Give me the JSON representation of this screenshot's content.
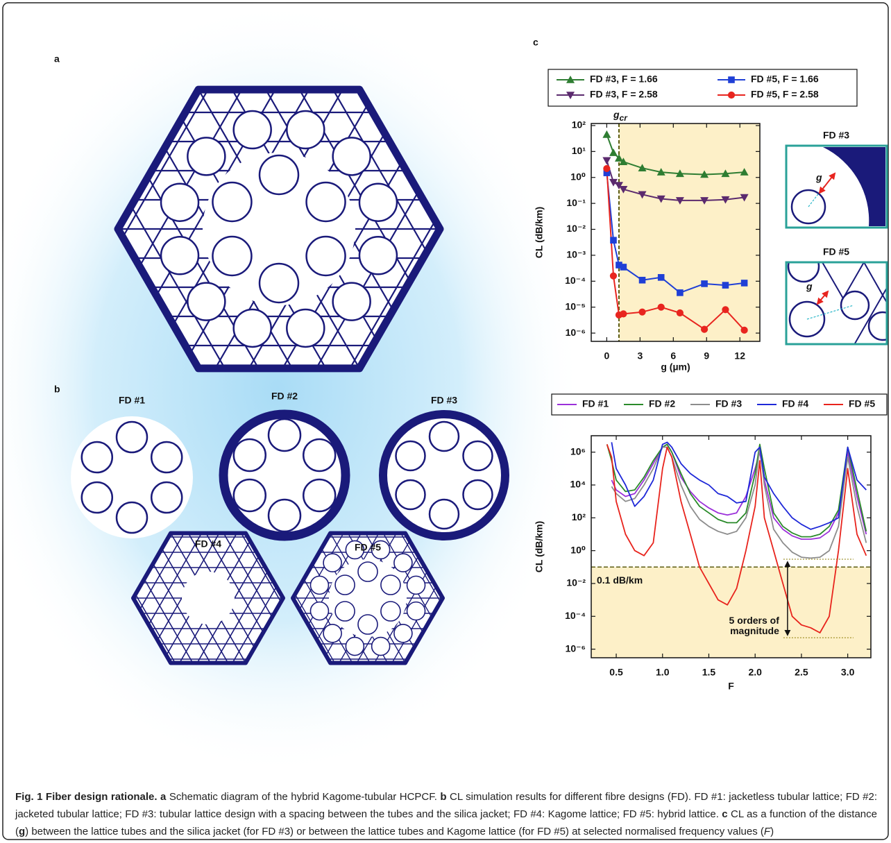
{
  "panels": [
    "a",
    "b",
    "c"
  ],
  "panel_b": {
    "labels": [
      "FD #1",
      "FD #2",
      "FD #3",
      "FD #4",
      "FD #5"
    ]
  },
  "insets": [
    {
      "title": "FD #3",
      "gap": "g"
    },
    {
      "title": "FD #5",
      "gap": "g"
    }
  ],
  "chart_data": [
    {
      "type": "line",
      "log_y": true,
      "legend": "top",
      "x_label": "g (µm)",
      "y_label": "CL (dB/km)",
      "x": [
        0,
        0.6,
        1.1,
        1.5,
        3.2,
        4.9,
        6.6,
        8.8,
        10.7,
        12.4
      ],
      "series": [
        {
          "name": "FD #3, F = 1.66",
          "color": "#2e7d32",
          "marker": "triangle-up",
          "values": [
            45,
            9,
            5.5,
            4,
            2.3,
            1.6,
            1.4,
            1.3,
            1.4,
            1.6
          ]
        },
        {
          "name": "FD #3, F = 2.58",
          "color": "#5b2a6e",
          "marker": "triangle-down",
          "values": [
            4.5,
            0.65,
            0.5,
            0.35,
            0.22,
            0.15,
            0.13,
            0.13,
            0.14,
            0.17
          ]
        },
        {
          "name": "FD #5, F = 1.66",
          "color": "#1f3fd6",
          "marker": "square",
          "values": [
            1.5,
            0.0038,
            0.00042,
            0.00035,
            0.00011,
            0.00014,
            3.6e-05,
            8e-05,
            7e-05,
            8.5e-05
          ]
        },
        {
          "name": "FD #5, F = 2.58",
          "color": "#e8251f",
          "marker": "circle",
          "values": [
            2.2,
            0.00016,
            5e-06,
            5.5e-06,
            6.5e-06,
            1e-05,
            6e-06,
            1.4e-06,
            8e-06,
            1.3e-06
          ]
        }
      ],
      "critical_gap": {
        "label": "g",
        "subscript": "cr",
        "x": 1.1
      },
      "shade_color": "#fdf0c8",
      "xlim": [
        -1.4,
        13.8
      ],
      "xticks": [
        0,
        3,
        6,
        9,
        12
      ],
      "ylim": [
        4.8e-07,
        120
      ],
      "yticks": [
        {
          "value": 100,
          "label": "10²"
        },
        {
          "value": 10,
          "label": "10¹"
        },
        {
          "value": 1,
          "label": "10⁰"
        },
        {
          "value": 0.1,
          "label": "10⁻¹"
        },
        {
          "value": 0.01,
          "label": "10⁻²"
        },
        {
          "value": 0.001,
          "label": "10⁻³"
        },
        {
          "value": 0.0001,
          "label": "10⁻⁴"
        },
        {
          "value": 1e-05,
          "label": "10⁻⁵"
        },
        {
          "value": 1e-06,
          "label": "10⁻⁶"
        }
      ]
    },
    {
      "type": "line",
      "log_y": true,
      "legend": "top",
      "x_label": "F",
      "y_label": "CL (dB/km)",
      "x": [
        0.4,
        0.45,
        0.5,
        0.6,
        0.7,
        0.8,
        0.9,
        1.0,
        1.05,
        1.1,
        1.2,
        1.3,
        1.4,
        1.5,
        1.6,
        1.7,
        1.8,
        1.9,
        2.0,
        2.05,
        2.1,
        2.2,
        2.3,
        2.4,
        2.5,
        2.6,
        2.7,
        2.8,
        2.9,
        3.0,
        3.1,
        3.2
      ],
      "series": [
        {
          "name": "FD #1",
          "color": "#9b30d9",
          "values": [
            null,
            20000,
            5000,
            2000,
            3000,
            20000,
            200000,
            2000000,
            3000000,
            1000000,
            30000,
            4000,
            1000,
            400,
            200,
            150,
            200,
            2000,
            100000,
            1000000,
            20000,
            100,
            20,
            8,
            5,
            5,
            6,
            15,
            200,
            1000000,
            2000,
            10
          ]
        },
        {
          "name": "FD #2",
          "color": "#2a8a2a",
          "values": [
            3000000,
            300000,
            20000,
            4000,
            5000,
            30000,
            300000,
            2000000,
            3000000,
            1000000,
            50000,
            3000,
            500,
            200,
            80,
            50,
            50,
            200,
            50000,
            3000000,
            100000,
            200,
            30,
            12,
            7,
            7,
            10,
            30,
            300,
            2000000,
            5000,
            15
          ]
        },
        {
          "name": "FD #3",
          "color": "#8c8c8c",
          "values": [
            null,
            8000,
            3000,
            1000,
            1500,
            10000,
            100000,
            2000000,
            2000000,
            500000,
            10000,
            500,
            80,
            30,
            15,
            10,
            15,
            100,
            10000,
            2000000,
            10000,
            20,
            3,
            0.8,
            0.4,
            0.35,
            0.4,
            1,
            30,
            500000,
            500,
            3
          ]
        },
        {
          "name": "FD #4",
          "color": "#1e28d8",
          "values": [
            null,
            4000000,
            100000,
            10000,
            500,
            2000,
            20000,
            3000000,
            4000000,
            2000000,
            200000,
            50000,
            20000,
            10000,
            3000,
            2000,
            800,
            1000,
            1000000,
            2000000,
            30000,
            3000,
            500,
            100,
            40,
            20,
            30,
            50,
            100,
            2000000,
            20000,
            5000
          ]
        },
        {
          "name": "FD #5",
          "color": "#e8231c",
          "values": [
            3000000,
            500000,
            1000,
            10,
            1,
            0.5,
            3,
            100000,
            2000000,
            500000,
            1000,
            10,
            0.1,
            0.01,
            0.001,
            0.0005,
            0.005,
            1,
            500,
            300000,
            100,
            1,
            0.01,
            0.0001,
            3e-05,
            2e-05,
            1e-05,
            0.0001,
            1,
            100000,
            10,
            0.5
          ]
        }
      ],
      "threshold": {
        "value": 0.1,
        "label": "0.1 dB/km"
      },
      "arrow": {
        "x": 2.35,
        "from": 0.3,
        "to": 5e-06,
        "label": [
          "5 orders of",
          "magnitude"
        ]
      },
      "shade_color": "#fdf0c8",
      "xlim": [
        0.23,
        3.25
      ],
      "xticks": [
        0.5,
        {
          "value": 1,
          "label": "1.0"
        },
        1.5,
        {
          "value": 2,
          "label": "2.0"
        },
        2.5,
        {
          "value": 3,
          "label": "3.0"
        }
      ],
      "ylim": [
        3e-07,
        10000000
      ],
      "yticks": [
        {
          "value": 1000000,
          "label": "10⁶"
        },
        {
          "value": 10000,
          "label": "10⁴"
        },
        {
          "value": 100,
          "label": "10²"
        },
        {
          "value": 1,
          "label": "10⁰"
        },
        {
          "value": 0.01,
          "label": "10⁻²"
        },
        {
          "value": 0.0001,
          "label": "10⁻⁴"
        },
        {
          "value": 1e-06,
          "label": "10⁻⁶"
        }
      ]
    }
  ],
  "caption": [
    {
      "text": "Fig. 1 Fiber design rationale.",
      "bold": true
    },
    {
      "text": " "
    },
    {
      "text": "a",
      "bold": true
    },
    {
      "text": " Schematic diagram of the hybrid Kagome-tubular HCPCF. "
    },
    {
      "text": "b",
      "bold": true
    },
    {
      "text": " CL simulation results for different fibre designs (FD). FD #1: jacketless tubular lattice; FD #2: jacketed tubular lattice; FD #3: tubular lattice design with a spacing between the tubes and the silica jacket; FD #4: Kagome lattice; FD #5: hybrid lattice. "
    },
    {
      "text": "c",
      "bold": true
    },
    {
      "text": " CL as a function of the distance ("
    },
    {
      "text": "g",
      "bold": true
    },
    {
      "text": ") between the lattice tubes and the silica jacket (for FD #3) or between the lattice tubes and Kagome lattice (for FD #5) at selected normalised frequency values ("
    },
    {
      "text": "F",
      "italic": true
    },
    {
      "text": ")"
    }
  ]
}
